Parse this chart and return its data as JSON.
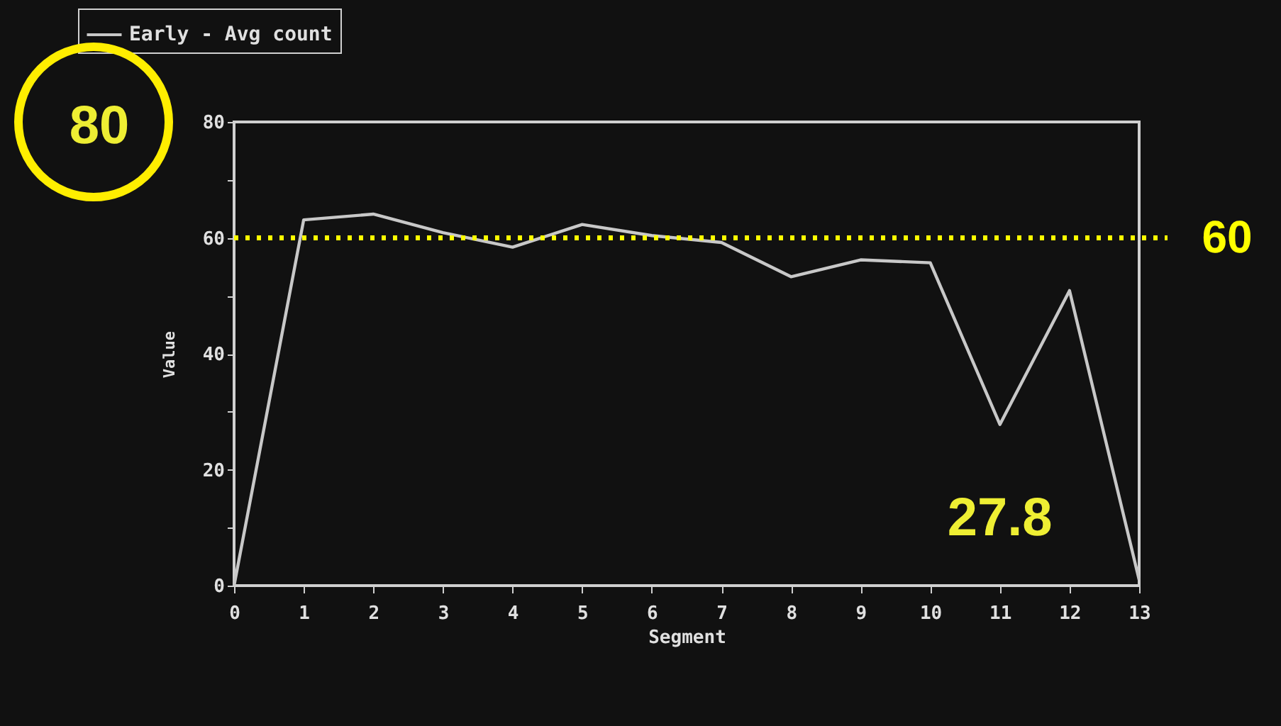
{
  "chart_data": {
    "type": "line",
    "xlabel": "Segment",
    "ylabel": "Value",
    "x": [
      0,
      1,
      2,
      3,
      4,
      5,
      6,
      7,
      8,
      9,
      10,
      11,
      12,
      13
    ],
    "series": [
      {
        "name": "Early - Avg count",
        "color": "#c8c8c8",
        "values": [
          0,
          63.1,
          64.1,
          60.9,
          58.4,
          62.3,
          60.4,
          59.2,
          53.3,
          56.2,
          55.7,
          27.8,
          50.9,
          1
        ]
      }
    ],
    "xlim": [
      0,
      13
    ],
    "xticks": [
      0,
      1,
      2,
      3,
      4,
      5,
      6,
      7,
      8,
      9,
      10,
      11,
      12,
      13
    ],
    "ylim": [
      0,
      80
    ],
    "yticks": [
      0,
      {
        "value": 10,
        "label": null
      },
      20,
      {
        "value": 30,
        "label": null
      },
      40,
      {
        "value": 50,
        "label": null
      },
      60,
      {
        "value": 70,
        "label": null
      },
      80
    ],
    "ref_lines": [
      {
        "axis": "y",
        "value": 60,
        "label": "60",
        "color": "#ffff00",
        "line_style": "dotted"
      }
    ],
    "annotations": [
      "80",
      {
        "text": "27.8",
        "x": 11,
        "y": 27.8
      }
    ],
    "grid": false,
    "legend": "top left",
    "marker": "none",
    "line_style": "solid"
  }
}
